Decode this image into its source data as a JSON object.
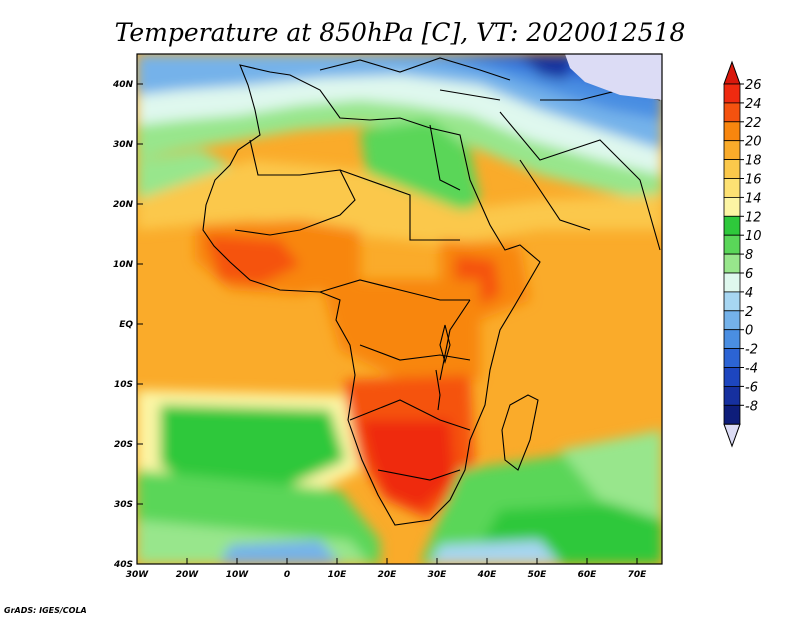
{
  "title": "Temperature at 850hPa [C], VT: 2020012518",
  "credit": "GrADS: IGES/COLA",
  "map": {
    "projection": "latlon",
    "lon_range": [
      -30,
      75
    ],
    "lat_range": [
      -40,
      45
    ],
    "field": "Temperature at 850hPa",
    "units": "C",
    "valid_time": "2020012518"
  },
  "axes": {
    "x_ticks": [
      {
        "lon": -30,
        "label": "30W"
      },
      {
        "lon": -20,
        "label": "20W"
      },
      {
        "lon": -10,
        "label": "10W"
      },
      {
        "lon": 0,
        "label": "0"
      },
      {
        "lon": 10,
        "label": "10E"
      },
      {
        "lon": 20,
        "label": "20E"
      },
      {
        "lon": 30,
        "label": "30E"
      },
      {
        "lon": 40,
        "label": "40E"
      },
      {
        "lon": 50,
        "label": "50E"
      },
      {
        "lon": 60,
        "label": "60E"
      },
      {
        "lon": 70,
        "label": "70E"
      }
    ],
    "y_ticks": [
      {
        "lat": 40,
        "label": "40N"
      },
      {
        "lat": 30,
        "label": "30N"
      },
      {
        "lat": 20,
        "label": "20N"
      },
      {
        "lat": 10,
        "label": "10N"
      },
      {
        "lat": 0,
        "label": "EQ"
      },
      {
        "lat": -10,
        "label": "10S"
      },
      {
        "lat": -20,
        "label": "20S"
      },
      {
        "lat": -30,
        "label": "30S"
      },
      {
        "lat": -40,
        "label": "40S"
      }
    ]
  },
  "colorbar": {
    "labels": [
      "26",
      "24",
      "22",
      "20",
      "18",
      "16",
      "14",
      "12",
      "10",
      "8",
      "6",
      "4",
      "2",
      "0",
      "-2",
      "-4",
      "-6",
      "-8"
    ],
    "colors": [
      "#ef2a10",
      "#f5520f",
      "#f8860e",
      "#faab2a",
      "#fbc84b",
      "#fde173",
      "#fcf5a4",
      "#2ec83b",
      "#5ad659",
      "#98e68c",
      "#dff8ee",
      "#a7d6f2",
      "#74b2ea",
      "#4a8ee2",
      "#2c64d4",
      "#1d46bf",
      "#16309f",
      "#0e1d7a"
    ],
    "top_color": "#d9180c",
    "bottom_color": "#dcdcf5"
  }
}
